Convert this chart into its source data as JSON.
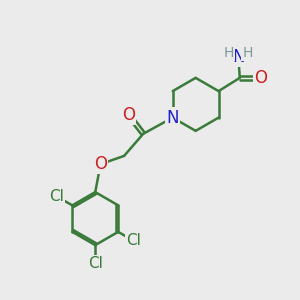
{
  "bg_color": "#ebebeb",
  "bond_color": "#3a7a3a",
  "bond_width": 1.8,
  "atom_colors": {
    "N": "#2020cc",
    "O": "#cc2020",
    "Cl": "#3a7a3a",
    "H": "#7a9a9a"
  },
  "font_size_atom": 12,
  "font_size_cl": 11,
  "font_size_h": 10,
  "xlim": [
    0,
    10
  ],
  "ylim": [
    0,
    10
  ]
}
